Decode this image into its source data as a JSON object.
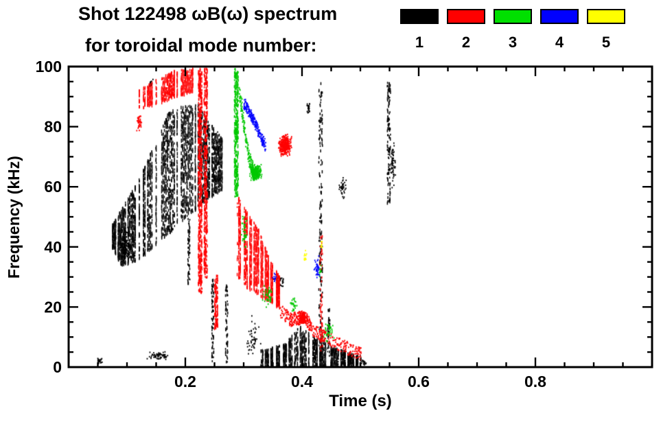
{
  "figure": {
    "background": "#ffffff",
    "frame_color": "#000000"
  },
  "chart_data": {
    "type": "scatter",
    "title": "Shot 122498 ωB(ω) spectrum",
    "subtitle": "for toroidal mode number:",
    "xlabel": "Time (s)",
    "ylabel": "Frequency (kHz)",
    "xlim": [
      0,
      1.0
    ],
    "ylim": [
      0,
      100
    ],
    "x_major_ticks": [
      0.2,
      0.4,
      0.6,
      0.8
    ],
    "x_tick_labels": [
      "0.2",
      "0.4",
      "0.6",
      "0.8"
    ],
    "x_minor_step": 0.05,
    "y_major_ticks": [
      0,
      20,
      40,
      60,
      80,
      100
    ],
    "y_tick_labels": [
      "0",
      "20",
      "40",
      "60",
      "80",
      "100"
    ],
    "y_minor_step": 5,
    "grid": false,
    "legend": {
      "position": "top-right",
      "entries": [
        {
          "label": "1",
          "color": "#000000"
        },
        {
          "label": "2",
          "color": "#ff0000"
        },
        {
          "label": "3",
          "color": "#00e000"
        },
        {
          "label": "4",
          "color": "#0000ff"
        },
        {
          "label": "5",
          "color": "#ffff00"
        }
      ]
    },
    "series": [
      {
        "name": "toroidal mode n=1",
        "color": "#000000",
        "clusters": [
          {
            "type": "band",
            "n": 4200,
            "low": [
              [
                0.075,
                40
              ],
              [
                0.09,
                34
              ],
              [
                0.12,
                36
              ],
              [
                0.16,
                43
              ],
              [
                0.2,
                50
              ],
              [
                0.23,
                55
              ],
              [
                0.265,
                60
              ]
            ],
            "high": [
              [
                0.075,
                48
              ],
              [
                0.09,
                53
              ],
              [
                0.12,
                63
              ],
              [
                0.15,
                76
              ],
              [
                0.17,
                85
              ],
              [
                0.19,
                87
              ],
              [
                0.22,
                88
              ],
              [
                0.24,
                82
              ],
              [
                0.265,
                76
              ]
            ]
          },
          {
            "type": "blob",
            "n": 150,
            "c": [
              0.095,
              41
            ],
            "r": [
              0.013,
              8
            ]
          },
          {
            "type": "vline",
            "n": 60,
            "t": 0.205,
            "f": [
              28,
              50
            ],
            "jitter": 0.002
          },
          {
            "type": "vline",
            "n": 70,
            "t": 0.246,
            "f": [
              2,
              30
            ],
            "jitter": 0.002
          },
          {
            "type": "vline",
            "n": 60,
            "t": 0.27,
            "f": [
              2,
              28
            ],
            "jitter": 0.002
          },
          {
            "type": "band",
            "n": 1900,
            "low": [
              [
                0.33,
                0.4
              ],
              [
                0.4,
                0.4
              ],
              [
                0.5,
                0.3
              ]
            ],
            "high": [
              [
                0.33,
                6
              ],
              [
                0.37,
                8
              ],
              [
                0.395,
                14
              ],
              [
                0.41,
                12
              ],
              [
                0.45,
                7
              ],
              [
                0.5,
                4
              ]
            ]
          },
          {
            "type": "blob",
            "n": 60,
            "c": [
              0.155,
              4
            ],
            "r": [
              0.027,
              2.5
            ]
          },
          {
            "type": "blob",
            "n": 25,
            "c": [
              0.052,
              2.5
            ],
            "r": [
              0.006,
              1.5
            ]
          },
          {
            "type": "vline",
            "n": 150,
            "t": 0.431,
            "f": [
              2,
              95
            ],
            "jitter": 0.0032
          },
          {
            "type": "vline",
            "n": 40,
            "t": 0.445,
            "f": [
              4,
              20
            ],
            "jitter": 0.002
          },
          {
            "type": "vline",
            "n": 120,
            "t": 0.548,
            "f": [
              55,
              95
            ],
            "jitter": 0.0028
          },
          {
            "type": "blob",
            "n": 60,
            "c": [
              0.555,
              68
            ],
            "r": [
              0.005,
              9
            ]
          },
          {
            "type": "blob",
            "n": 40,
            "c": [
              0.468,
              60
            ],
            "r": [
              0.008,
              5
            ]
          },
          {
            "type": "blob",
            "n": 25,
            "c": [
              0.41,
              86
            ],
            "r": [
              0.004,
              3
            ]
          },
          {
            "type": "blob",
            "n": 40,
            "c": [
              0.36,
              29
            ],
            "r": [
              0.01,
              4
            ]
          },
          {
            "type": "blob",
            "n": 20,
            "c": [
              0.14,
              94.5
            ],
            "r": [
              0.005,
              2
            ]
          },
          {
            "type": "blob",
            "n": 50,
            "c": [
              0.315,
              10
            ],
            "r": [
              0.015,
              8
            ]
          },
          {
            "type": "blob",
            "n": 20,
            "c": [
              0.505,
              2
            ],
            "r": [
              0.006,
              1.5
            ]
          }
        ]
      },
      {
        "name": "toroidal mode n=2",
        "color": "#ff0000",
        "clusters": [
          {
            "type": "band",
            "n": 900,
            "low": [
              [
                0.115,
                86
              ],
              [
                0.15,
                88
              ],
              [
                0.18,
                90
              ],
              [
                0.215,
                92
              ]
            ],
            "high": [
              [
                0.115,
                92
              ],
              [
                0.15,
                96
              ],
              [
                0.18,
                99
              ],
              [
                0.215,
                100
              ]
            ]
          },
          {
            "type": "vline",
            "n": 520,
            "t": 0.2245,
            "f": [
              25,
              100
            ],
            "jitter": 0.0032
          },
          {
            "type": "vline",
            "n": 380,
            "t": 0.234,
            "f": [
              30,
              100
            ],
            "jitter": 0.0028
          },
          {
            "type": "vline",
            "n": 120,
            "t": 0.252,
            "f": [
              13,
              31
            ],
            "jitter": 0.0028
          },
          {
            "type": "band",
            "n": 1700,
            "low": [
              [
                0.29,
                30
              ],
              [
                0.305,
                27
              ],
              [
                0.325,
                24
              ],
              [
                0.345,
                22
              ],
              [
                0.362,
                20
              ]
            ],
            "high": [
              [
                0.29,
                57
              ],
              [
                0.305,
                52
              ],
              [
                0.325,
                46
              ],
              [
                0.345,
                36
              ],
              [
                0.362,
                30
              ]
            ]
          },
          {
            "type": "blob",
            "n": 340,
            "c": [
              0.37,
              74
            ],
            "r": [
              0.013,
              4.5
            ]
          },
          {
            "type": "trace",
            "n": 430,
            "th": 2.2,
            "pts": [
              [
                0.362,
                19
              ],
              [
                0.38,
                16
              ],
              [
                0.392,
                16.5
              ],
              [
                0.405,
                17
              ],
              [
                0.415,
                13
              ],
              [
                0.44,
                10
              ],
              [
                0.47,
                7
              ],
              [
                0.5,
                4.5
              ]
            ]
          },
          {
            "type": "blob",
            "n": 150,
            "c": [
              0.401,
              16.5
            ],
            "r": [
              0.009,
              2.5
            ]
          },
          {
            "type": "vline",
            "n": 55,
            "t": 0.432,
            "f": [
              5,
              45
            ],
            "jitter": 0.0022
          },
          {
            "type": "blob",
            "n": 40,
            "c": [
              0.12,
              82
            ],
            "r": [
              0.006,
              4
            ]
          }
        ]
      },
      {
        "name": "toroidal mode n=3",
        "color": "#00c800",
        "clusters": [
          {
            "type": "vline",
            "n": 330,
            "t": 0.2865,
            "f": [
              57,
              100
            ],
            "jitter": 0.0035
          },
          {
            "type": "trace",
            "n": 150,
            "th": 2.4,
            "pts": [
              [
                0.292,
                92
              ],
              [
                0.3,
                80
              ],
              [
                0.308,
                70
              ],
              [
                0.315,
                66
              ]
            ]
          },
          {
            "type": "blob",
            "n": 280,
            "c": [
              0.32,
              65
            ],
            "r": [
              0.012,
              3.2
            ]
          },
          {
            "type": "blob",
            "n": 40,
            "c": [
              0.3,
              45
            ],
            "r": [
              0.006,
              8
            ]
          },
          {
            "type": "blob",
            "n": 45,
            "c": [
              0.34,
              24
            ],
            "r": [
              0.012,
              5
            ]
          },
          {
            "type": "blob",
            "n": 35,
            "c": [
              0.445,
              12
            ],
            "r": [
              0.012,
              4
            ]
          },
          {
            "type": "blob",
            "n": 25,
            "c": [
              0.385,
              21
            ],
            "r": [
              0.008,
              3
            ]
          },
          {
            "type": "blob",
            "n": 12,
            "c": [
              0.43,
              32
            ],
            "r": [
              0.004,
              3
            ]
          }
        ]
      },
      {
        "name": "toroidal mode n=4",
        "color": "#0000ff",
        "clusters": [
          {
            "type": "trace",
            "n": 220,
            "th": 1.8,
            "pts": [
              [
                0.3,
                88
              ],
              [
                0.312,
                84
              ],
              [
                0.324,
                79
              ],
              [
                0.336,
                74
              ]
            ]
          },
          {
            "type": "blob",
            "n": 40,
            "c": [
              0.425,
              33
            ],
            "r": [
              0.006,
              5
            ]
          },
          {
            "type": "blob",
            "n": 12,
            "c": [
              0.352,
              30
            ],
            "r": [
              0.004,
              3
            ]
          }
        ]
      },
      {
        "name": "toroidal mode n=5",
        "color": "#ffff00",
        "clusters": [
          {
            "type": "blob",
            "n": 14,
            "c": [
              0.405,
              37
            ],
            "r": [
              0.005,
              2.5
            ]
          },
          {
            "type": "blob",
            "n": 8,
            "c": [
              0.433,
              41
            ],
            "r": [
              0.003,
              2
            ]
          }
        ]
      }
    ]
  }
}
